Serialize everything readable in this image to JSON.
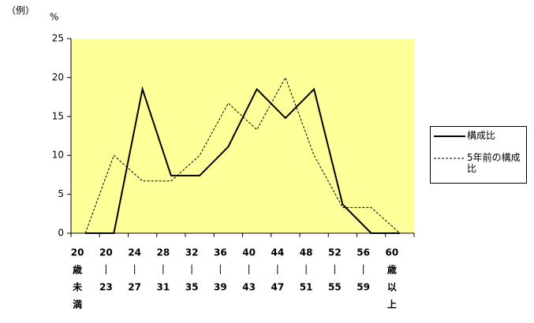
{
  "chart_data": {
    "type": "line",
    "note": "（例）",
    "y_label": "%",
    "categories": [
      [
        "20",
        "歳",
        "未",
        "満"
      ],
      [
        "20",
        "｜",
        "23"
      ],
      [
        "24",
        "｜",
        "27"
      ],
      [
        "28",
        "｜",
        "31"
      ],
      [
        "32",
        "｜",
        "35"
      ],
      [
        "36",
        "｜",
        "39"
      ],
      [
        "40",
        "｜",
        "43"
      ],
      [
        "44",
        "｜",
        "47"
      ],
      [
        "48",
        "｜",
        "51"
      ],
      [
        "52",
        "｜",
        "55"
      ],
      [
        "56",
        "｜",
        "59"
      ],
      [
        "60",
        "歳",
        "以",
        "上"
      ]
    ],
    "series": [
      {
        "name": "構成比",
        "color": "#000000",
        "style": "solid",
        "values": [
          0,
          0,
          18.5,
          7.4,
          7.4,
          11.1,
          18.5,
          14.8,
          18.5,
          3.7,
          0,
          0
        ]
      },
      {
        "name": "5年前の構成比",
        "color": "#000000",
        "style": "dashed",
        "values": [
          0,
          10,
          6.7,
          6.7,
          10,
          16.7,
          13.3,
          20,
          10,
          3.3,
          3.3,
          0
        ]
      }
    ],
    "ylim": [
      0,
      25
    ],
    "yticks": [
      0,
      5,
      10,
      15,
      20,
      25
    ],
    "grid": false,
    "plot_background": "#ffff99",
    "legend": "right"
  }
}
